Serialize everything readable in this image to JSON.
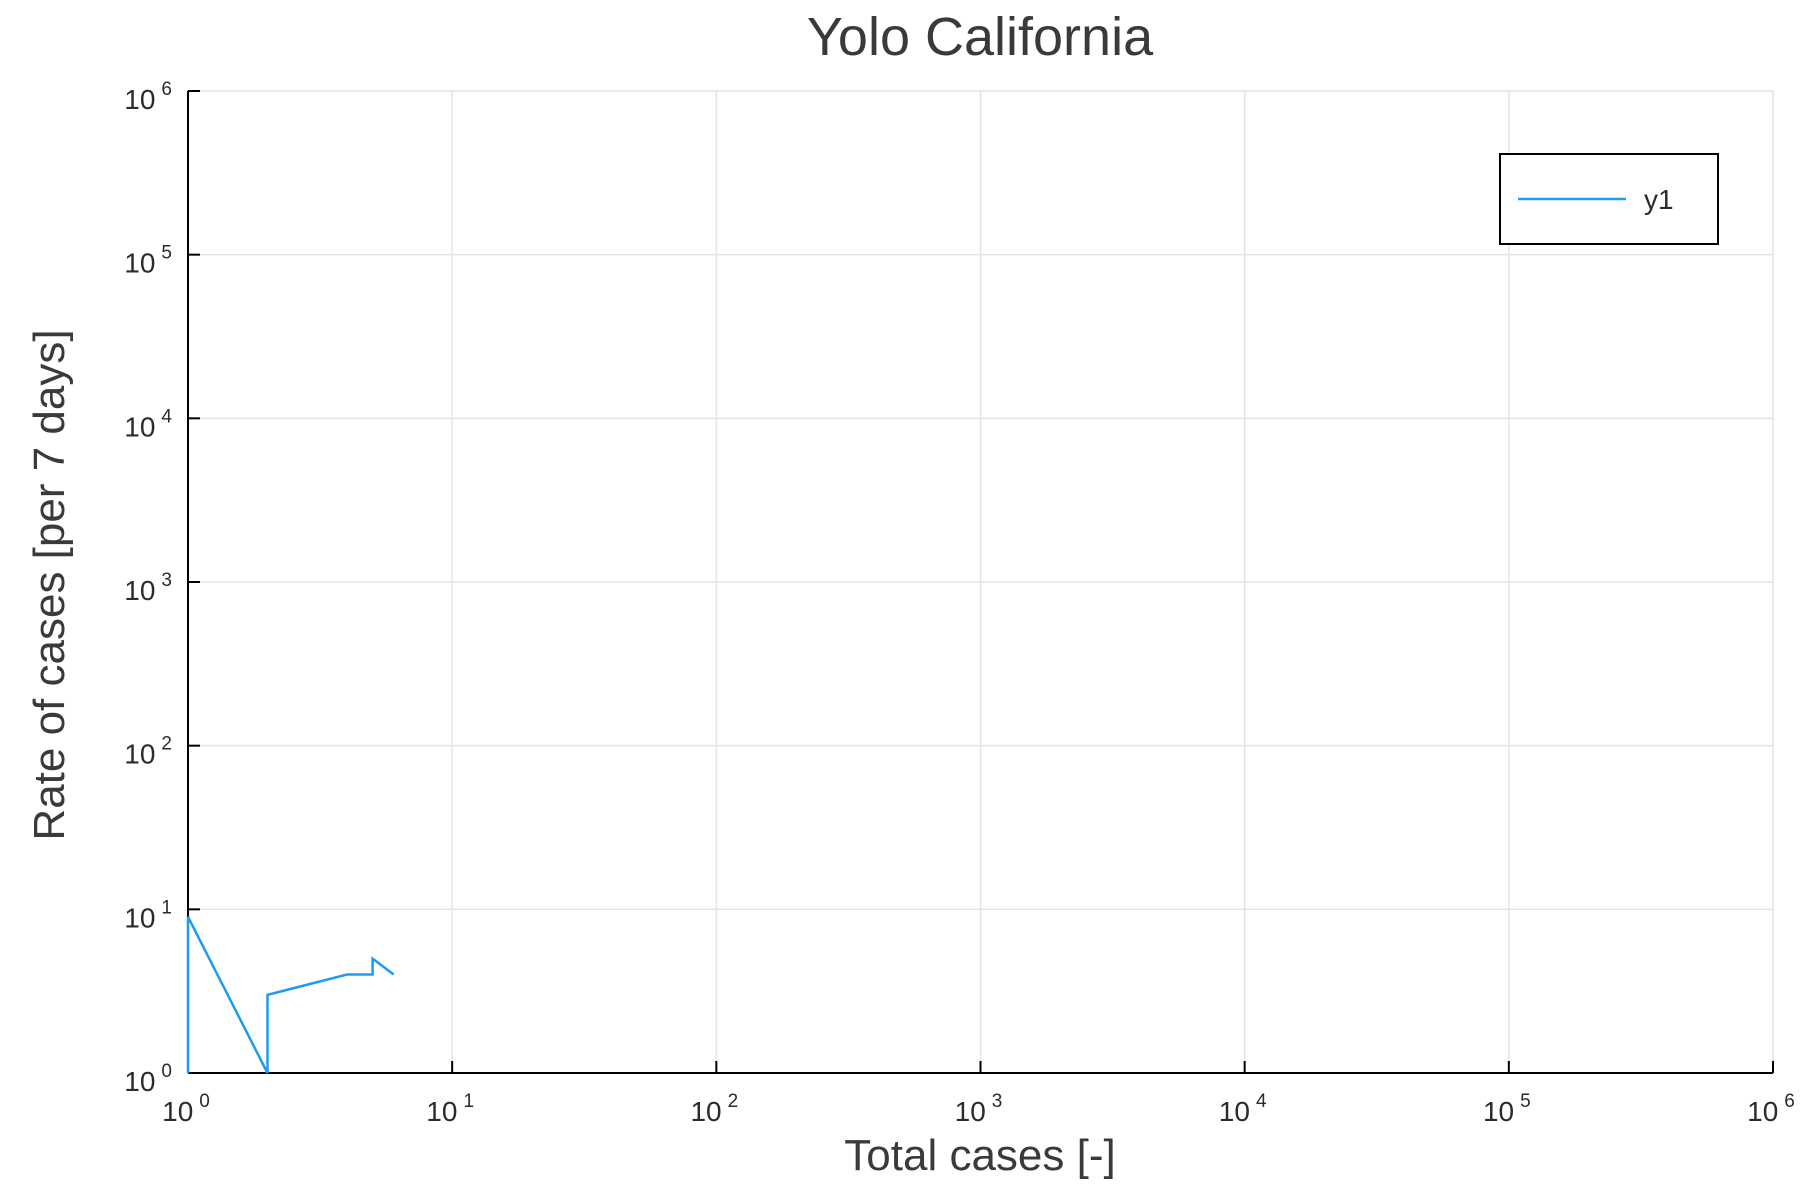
{
  "chart_data": {
    "type": "line",
    "title": "Yolo California",
    "xlabel": "Total cases [-]",
    "ylabel": "Rate of cases [per 7 days]",
    "x_scale": "log",
    "y_scale": "log",
    "xlim": [
      1,
      1000000
    ],
    "ylim": [
      1,
      1000000
    ],
    "x_ticks": [
      {
        "base": "10",
        "exp": "0"
      },
      {
        "base": "10",
        "exp": "1"
      },
      {
        "base": "10",
        "exp": "2"
      },
      {
        "base": "10",
        "exp": "3"
      },
      {
        "base": "10",
        "exp": "4"
      },
      {
        "base": "10",
        "exp": "5"
      },
      {
        "base": "10",
        "exp": "6"
      }
    ],
    "y_ticks": [
      {
        "base": "10",
        "exp": "0"
      },
      {
        "base": "10",
        "exp": "1"
      },
      {
        "base": "10",
        "exp": "2"
      },
      {
        "base": "10",
        "exp": "3"
      },
      {
        "base": "10",
        "exp": "4"
      },
      {
        "base": "10",
        "exp": "5"
      },
      {
        "base": "10",
        "exp": "6"
      }
    ],
    "grid": true,
    "legend_position": "top-right",
    "series": [
      {
        "name": "y1",
        "color": "#1f9bee",
        "points": [
          [
            1,
            1
          ],
          [
            1,
            9
          ],
          [
            2,
            1
          ],
          [
            2,
            3
          ],
          [
            4,
            4
          ],
          [
            5,
            4
          ],
          [
            5,
            5
          ],
          [
            6,
            4
          ]
        ]
      }
    ]
  }
}
